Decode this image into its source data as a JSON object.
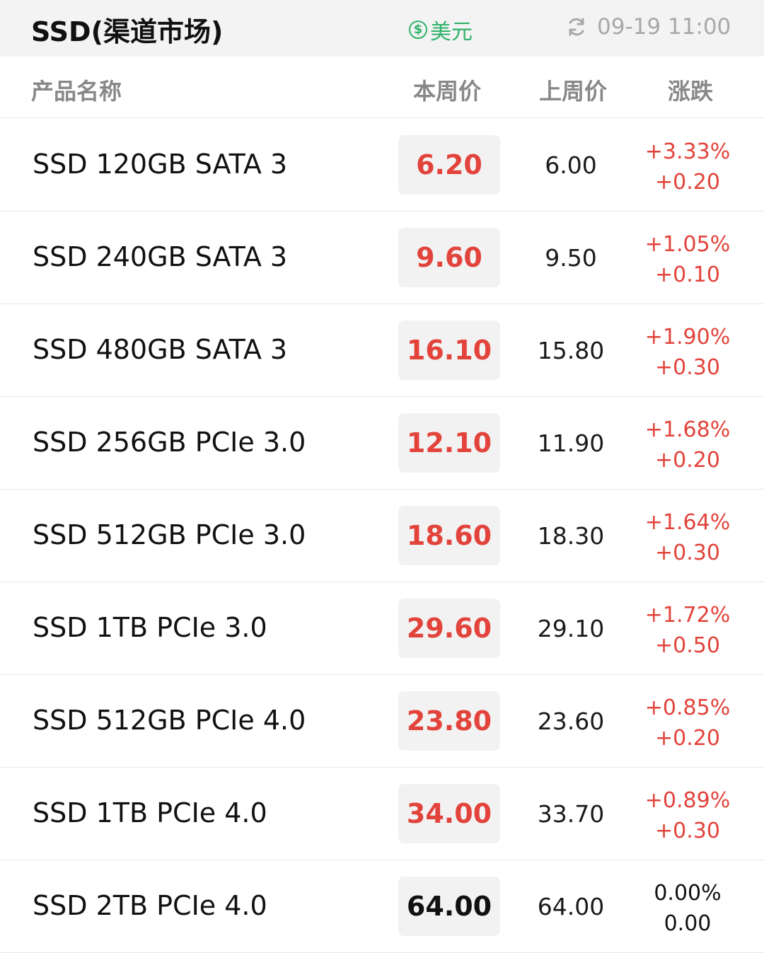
{
  "header": {
    "title": "SSD(渠道市场)",
    "currency_symbol": "$",
    "currency_label": "美元",
    "timestamp": "09-19 11:00"
  },
  "columns": {
    "name": "产品名称",
    "current": "本周价",
    "previous": "上周价",
    "change": "涨跌"
  },
  "colors": {
    "up": "#e2433b",
    "flat": "#111111",
    "accent_green": "#2fb26a"
  },
  "rows": [
    {
      "name": "SSD 120GB SATA 3",
      "current": "6.20",
      "previous": "6.00",
      "pct": "+3.33%",
      "diff": "+0.20",
      "trend": "up"
    },
    {
      "name": "SSD 240GB SATA 3",
      "current": "9.60",
      "previous": "9.50",
      "pct": "+1.05%",
      "diff": "+0.10",
      "trend": "up"
    },
    {
      "name": "SSD 480GB SATA 3",
      "current": "16.10",
      "previous": "15.80",
      "pct": "+1.90%",
      "diff": "+0.30",
      "trend": "up"
    },
    {
      "name": "SSD 256GB PCIe 3.0",
      "current": "12.10",
      "previous": "11.90",
      "pct": "+1.68%",
      "diff": "+0.20",
      "trend": "up"
    },
    {
      "name": "SSD 512GB PCIe 3.0",
      "current": "18.60",
      "previous": "18.30",
      "pct": "+1.64%",
      "diff": "+0.30",
      "trend": "up"
    },
    {
      "name": "SSD 1TB PCIe 3.0",
      "current": "29.60",
      "previous": "29.10",
      "pct": "+1.72%",
      "diff": "+0.50",
      "trend": "up"
    },
    {
      "name": "SSD 512GB PCIe 4.0",
      "current": "23.80",
      "previous": "23.60",
      "pct": "+0.85%",
      "diff": "+0.20",
      "trend": "up"
    },
    {
      "name": "SSD 1TB PCIe 4.0",
      "current": "34.00",
      "previous": "33.70",
      "pct": "+0.89%",
      "diff": "+0.30",
      "trend": "up"
    },
    {
      "name": "SSD 2TB PCIe 4.0",
      "current": "64.00",
      "previous": "64.00",
      "pct": "0.00%",
      "diff": "0.00",
      "trend": "flat"
    }
  ]
}
